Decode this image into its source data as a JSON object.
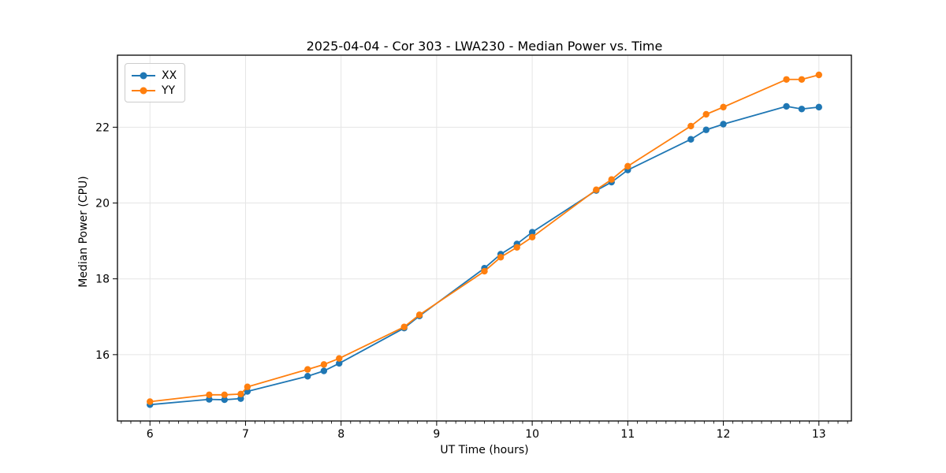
{
  "chart_data": {
    "type": "line",
    "title": "2025-04-04 - Cor 303 - LWA230 - Median Power vs. Time",
    "xlabel": "UT Time (hours)",
    "ylabel": "Median Power (CPU)",
    "xlim": [
      5.66,
      13.34
    ],
    "ylim": [
      14.25,
      23.9
    ],
    "xticks": [
      6,
      7,
      8,
      9,
      10,
      11,
      12,
      13
    ],
    "yticks": [
      16,
      18,
      20,
      22
    ],
    "x_minor_step": 0.1,
    "grid": true,
    "grid_color": "#e5e5e5",
    "legend_position": "upper-left",
    "x": [
      6.0,
      6.62,
      6.78,
      6.95,
      7.02,
      7.65,
      7.82,
      7.98,
      8.66,
      8.82,
      9.5,
      9.67,
      9.84,
      10.0,
      10.67,
      10.83,
      11.0,
      11.66,
      11.82,
      12.0,
      12.66,
      12.82,
      13.0
    ],
    "series": [
      {
        "name": "XX",
        "color": "#1f77b4",
        "values": [
          14.68,
          14.82,
          14.81,
          14.84,
          15.03,
          15.43,
          15.57,
          15.77,
          16.7,
          17.02,
          18.28,
          18.65,
          18.92,
          19.23,
          20.33,
          20.55,
          20.87,
          21.68,
          21.93,
          22.08,
          22.55,
          22.48,
          22.53
        ]
      },
      {
        "name": "YY",
        "color": "#ff7f0e",
        "values": [
          14.76,
          14.94,
          14.94,
          14.96,
          15.15,
          15.61,
          15.74,
          15.9,
          16.73,
          17.05,
          18.2,
          18.57,
          18.83,
          19.1,
          20.35,
          20.62,
          20.97,
          22.03,
          22.34,
          22.53,
          23.26,
          23.26,
          23.38
        ]
      }
    ]
  }
}
